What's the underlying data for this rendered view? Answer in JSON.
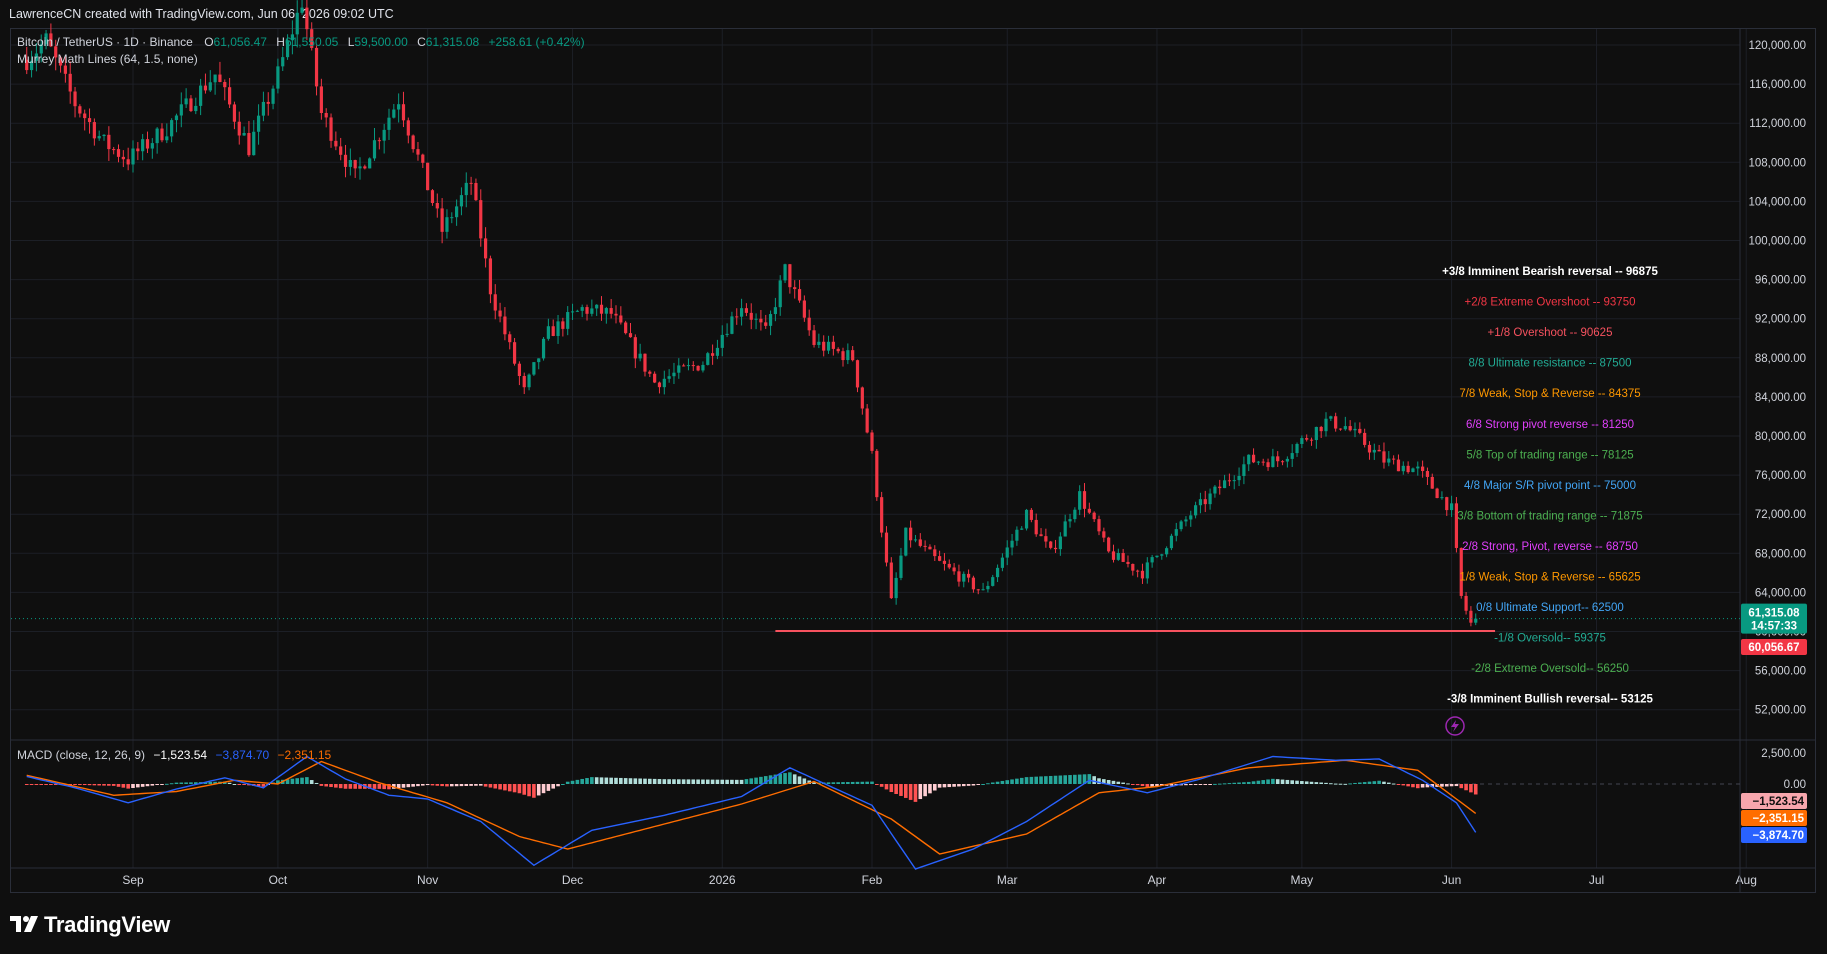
{
  "header": {
    "attribution": "LawrenceCN created with TradingView.com, Jun 06, 2026 09:02 UTC"
  },
  "legend": {
    "symbol": "Bitcoin / TetherUS · 1D · Binance",
    "open_label": "O",
    "open": "61,056.47",
    "high_label": "H",
    "high": "61,550.05",
    "low_label": "L",
    "low": "59,500.00",
    "close_label": "C",
    "close": "61,315.08",
    "change": "+258.61 (+0.42%)",
    "indicator": "Murrey Math Lines (64, 1.5, none)"
  },
  "macd_legend": {
    "title": "MACD (close, 12, 26, 9)",
    "hist": "−1,523.54",
    "macd": "−3,874.70",
    "signal": "−2,351.15"
  },
  "colors": {
    "up": "#089981",
    "down": "#f23645",
    "bg": "#0f0f0f",
    "grid": "#1c1f26",
    "macd_line": "#2962ff",
    "signal_line": "#ff6d00",
    "level_line": "#f7525f"
  },
  "footer": {
    "brand": "TradingView",
    "logo_icon": "tradingview-logo-icon"
  },
  "indicator_icon": "lightning-icon",
  "chart_data": [
    {
      "type": "candlestick",
      "title": "Bitcoin / TetherUS · 1D · Binance",
      "xlabel": "",
      "ylabel": "",
      "ylim": [
        48000,
        123000
      ],
      "x_ticks": [
        "Sep",
        "Oct",
        "Nov",
        "Dec",
        "2026",
        "Feb",
        "Mar",
        "Apr",
        "May",
        "Jun",
        "Jul",
        "Aug"
      ],
      "y_ticks": [
        "120,000.00",
        "116,000.00",
        "112,000.00",
        "108,000.00",
        "104,000.00",
        "100,000.00",
        "96,000.00",
        "92,000.00",
        "88,000.00",
        "84,000.00",
        "80,000.00",
        "76,000.00",
        "72,000.00",
        "68,000.00",
        "64,000.00",
        "60,000.00",
        "56,000.00",
        "52,000.00"
      ],
      "price_anchors": [
        {
          "date": "2025-08-10",
          "price": 118500
        },
        {
          "date": "2025-08-14",
          "price": 120500
        },
        {
          "date": "2025-08-20",
          "price": 114000
        },
        {
          "date": "2025-08-26",
          "price": 110000
        },
        {
          "date": "2025-08-31",
          "price": 108300
        },
        {
          "date": "2025-09-08",
          "price": 111500
        },
        {
          "date": "2025-09-18",
          "price": 117000
        },
        {
          "date": "2025-09-25",
          "price": 109500
        },
        {
          "date": "2025-10-01",
          "price": 117000
        },
        {
          "date": "2025-10-06",
          "price": 124500
        },
        {
          "date": "2025-10-10",
          "price": 113000
        },
        {
          "date": "2025-10-17",
          "price": 106500
        },
        {
          "date": "2025-10-26",
          "price": 114500
        },
        {
          "date": "2025-11-04",
          "price": 101000
        },
        {
          "date": "2025-11-10",
          "price": 106000
        },
        {
          "date": "2025-11-14",
          "price": 95000
        },
        {
          "date": "2025-11-21",
          "price": 84500
        },
        {
          "date": "2025-11-26",
          "price": 90500
        },
        {
          "date": "2025-12-03",
          "price": 93000
        },
        {
          "date": "2025-12-09",
          "price": 92500
        },
        {
          "date": "2025-12-18",
          "price": 85500
        },
        {
          "date": "2025-12-28",
          "price": 87500
        },
        {
          "date": "2026-01-05",
          "price": 93500
        },
        {
          "date": "2026-01-10",
          "price": 90500
        },
        {
          "date": "2026-01-14",
          "price": 97000
        },
        {
          "date": "2026-01-20",
          "price": 89500
        },
        {
          "date": "2026-01-28",
          "price": 88000
        },
        {
          "date": "2026-02-01",
          "price": 78000
        },
        {
          "date": "2026-02-05",
          "price": 63000
        },
        {
          "date": "2026-02-08",
          "price": 70000
        },
        {
          "date": "2026-02-15",
          "price": 67000
        },
        {
          "date": "2026-02-24",
          "price": 64000
        },
        {
          "date": "2026-03-05",
          "price": 72000
        },
        {
          "date": "2026-03-10",
          "price": 68000
        },
        {
          "date": "2026-03-16",
          "price": 74000
        },
        {
          "date": "2026-03-22",
          "price": 68000
        },
        {
          "date": "2026-03-29",
          "price": 66000
        },
        {
          "date": "2026-04-08",
          "price": 72000
        },
        {
          "date": "2026-04-20",
          "price": 77500
        },
        {
          "date": "2026-04-26",
          "price": 77500
        },
        {
          "date": "2026-05-06",
          "price": 81500
        },
        {
          "date": "2026-05-10",
          "price": 81000
        },
        {
          "date": "2026-05-18",
          "price": 77500
        },
        {
          "date": "2026-05-25",
          "price": 76500
        },
        {
          "date": "2026-06-01",
          "price": 72500
        },
        {
          "date": "2026-06-03",
          "price": 63500
        },
        {
          "date": "2026-06-05",
          "price": 60800
        },
        {
          "date": "2026-06-06",
          "price": 61315
        }
      ],
      "murrey_levels": [
        {
          "label": "+3/8 Imminent Bearish reversal --  96875",
          "value": 96875,
          "color": "#ffffff"
        },
        {
          "label": "+2/8 Extreme Overshoot --  93750",
          "value": 93750,
          "color": "#f23645"
        },
        {
          "label": "+1/8 Overshoot --  90625",
          "value": 90625,
          "color": "#f7525f"
        },
        {
          "label": "8/8 Ultimate resistance --  87500",
          "value": 87500,
          "color": "#22ab94"
        },
        {
          "label": "7/8 Weak, Stop & Reverse --  84375",
          "value": 84375,
          "color": "#ff9800"
        },
        {
          "label": "6/8 Strong pivot reverse --  81250",
          "value": 81250,
          "color": "#e040fb"
        },
        {
          "label": "5/8 Top of trading range --  78125",
          "value": 78125,
          "color": "#4caf50"
        },
        {
          "label": "4/8 Major S/R pivot point --  75000",
          "value": 75000,
          "color": "#42a5f5"
        },
        {
          "label": "3/8 Bottom of trading range --  71875",
          "value": 71875,
          "color": "#4caf50"
        },
        {
          "label": "2/8 Strong, Pivot, reverse --  68750",
          "value": 68750,
          "color": "#e040fb"
        },
        {
          "label": "1/8 Weak, Stop & Reverse --  65625",
          "value": 65625,
          "color": "#ff9800"
        },
        {
          "label": "0/8 Ultimate Support--  62500",
          "value": 62500,
          "color": "#42a5f5"
        },
        {
          "label": "-1/8 Oversold--  59375",
          "value": 59375,
          "color": "#22ab94"
        },
        {
          "label": "-2/8 Extreme Oversold--  56250",
          "value": 56250,
          "color": "#4caf50"
        },
        {
          "label": "-3/8 Imminent Bullish reversal--  53125",
          "value": 53125,
          "color": "#ffffff"
        }
      ],
      "horizontal_line": {
        "value": 60056.67,
        "from": "2026-01-12",
        "to": "2026-06-10"
      },
      "price_badges": [
        {
          "text": "61,315.08",
          "sub": "14:57:33",
          "value": 61315.08,
          "color": "#089981"
        },
        {
          "text": "60,056.67",
          "value": 60056.67,
          "color": "#f23645"
        }
      ]
    },
    {
      "type": "macd",
      "title": "MACD (close, 12, 26, 9)",
      "ylim": [
        -7500,
        3500
      ],
      "y_ticks": [
        "2,500.00",
        "0.00"
      ],
      "macd_anchors": [
        {
          "date": "2025-08-10",
          "v": 600
        },
        {
          "date": "2025-08-20",
          "v": -300
        },
        {
          "date": "2025-08-31",
          "v": -1500
        },
        {
          "date": "2025-09-10",
          "v": -400
        },
        {
          "date": "2025-09-20",
          "v": 500
        },
        {
          "date": "2025-09-28",
          "v": -300
        },
        {
          "date": "2025-10-07",
          "v": 2200
        },
        {
          "date": "2025-10-15",
          "v": 400
        },
        {
          "date": "2025-10-24",
          "v": -900
        },
        {
          "date": "2025-11-01",
          "v": -1200
        },
        {
          "date": "2025-11-12",
          "v": -3000
        },
        {
          "date": "2025-11-23",
          "v": -6500
        },
        {
          "date": "2025-12-05",
          "v": -3700
        },
        {
          "date": "2025-12-20",
          "v": -2500
        },
        {
          "date": "2026-01-05",
          "v": -1000
        },
        {
          "date": "2026-01-15",
          "v": 1300
        },
        {
          "date": "2026-01-24",
          "v": -300
        },
        {
          "date": "2026-02-01",
          "v": -1700
        },
        {
          "date": "2026-02-10",
          "v": -6800
        },
        {
          "date": "2026-02-22",
          "v": -5200
        },
        {
          "date": "2026-03-05",
          "v": -3000
        },
        {
          "date": "2026-03-18",
          "v": 300
        },
        {
          "date": "2026-03-30",
          "v": -700
        },
        {
          "date": "2026-04-10",
          "v": 400
        },
        {
          "date": "2026-04-25",
          "v": 2200
        },
        {
          "date": "2026-05-08",
          "v": 1900
        },
        {
          "date": "2026-05-17",
          "v": 2000
        },
        {
          "date": "2026-05-26",
          "v": 300
        },
        {
          "date": "2026-06-02",
          "v": -1500
        },
        {
          "date": "2026-06-06",
          "v": -3875
        }
      ],
      "signal_anchors": [
        {
          "date": "2025-08-10",
          "v": 700
        },
        {
          "date": "2025-08-28",
          "v": -900
        },
        {
          "date": "2025-09-10",
          "v": -600
        },
        {
          "date": "2025-09-22",
          "v": 300
        },
        {
          "date": "2025-10-01",
          "v": 0
        },
        {
          "date": "2025-10-10",
          "v": 1800
        },
        {
          "date": "2025-10-22",
          "v": 100
        },
        {
          "date": "2025-11-05",
          "v": -1500
        },
        {
          "date": "2025-11-20",
          "v": -4200
        },
        {
          "date": "2025-11-30",
          "v": -5200
        },
        {
          "date": "2025-12-15",
          "v": -3700
        },
        {
          "date": "2026-01-05",
          "v": -1600
        },
        {
          "date": "2026-01-20",
          "v": 200
        },
        {
          "date": "2026-02-05",
          "v": -2800
        },
        {
          "date": "2026-02-15",
          "v": -5600
        },
        {
          "date": "2026-03-05",
          "v": -4000
        },
        {
          "date": "2026-03-20",
          "v": -700
        },
        {
          "date": "2026-04-01",
          "v": -200
        },
        {
          "date": "2026-04-20",
          "v": 1300
        },
        {
          "date": "2026-05-10",
          "v": 1900
        },
        {
          "date": "2026-05-25",
          "v": 1100
        },
        {
          "date": "2026-06-06",
          "v": -2351
        }
      ],
      "value_badges": [
        {
          "text": "−1,523.54",
          "value": -1523.54,
          "color": "#f7a6ad",
          "text_color": "#0f0f0f"
        },
        {
          "text": "−2,351.15",
          "value": -2351.15,
          "color": "#ff6d00",
          "text_color": "#ffffff"
        },
        {
          "text": "−3,874.70",
          "value": -3874.7,
          "color": "#2962ff",
          "text_color": "#ffffff"
        }
      ]
    }
  ]
}
